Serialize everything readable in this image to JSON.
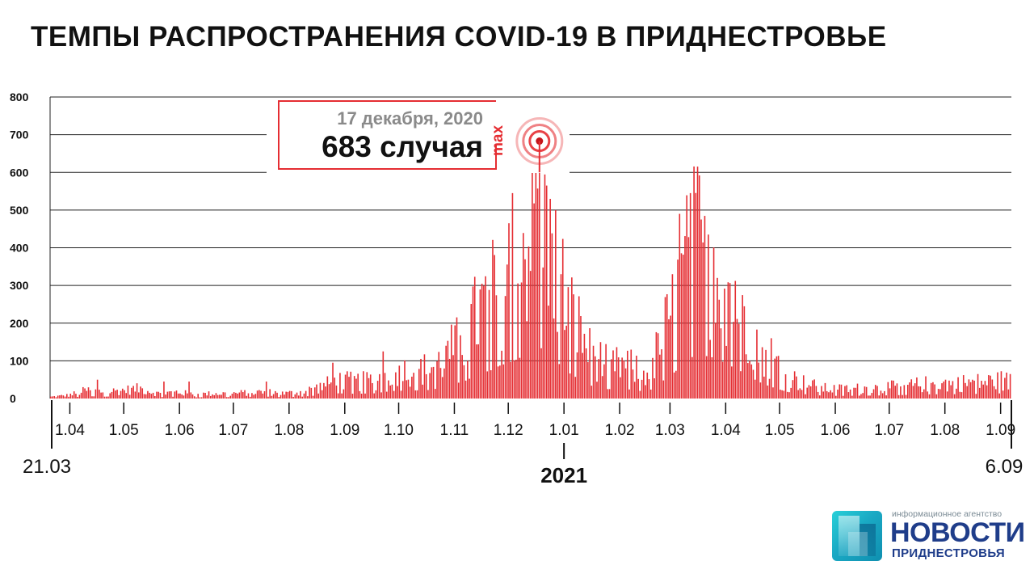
{
  "title": "ТЕМПЫ РАСПРОСТРАНЕНИЯ COVID-19 В ПРИДНЕСТРОВЬЕ",
  "chart_data": {
    "type": "bar",
    "title": "ТЕМПЫ РАСПРОСТРАНЕНИЯ COVID-19 В ПРИДНЕСТРОВЬЕ",
    "xlabel": "",
    "ylabel": "",
    "ylim": [
      0,
      800
    ],
    "yticks": [
      "0",
      "100",
      "200",
      "300",
      "400",
      "500",
      "600",
      "700",
      "800"
    ],
    "grid": true,
    "bar_color": "#e52d32",
    "x_start_label": "21.03",
    "x_end_label": "6.09",
    "year_label": "2021",
    "month_ticks": [
      {
        "label": "1.04",
        "day": 11
      },
      {
        "label": "1.05",
        "day": 41
      },
      {
        "label": "1.06",
        "day": 72
      },
      {
        "label": "1.07",
        "day": 102
      },
      {
        "label": "1.08",
        "day": 133
      },
      {
        "label": "1.09",
        "day": 164
      },
      {
        "label": "1.10",
        "day": 194
      },
      {
        "label": "1.11",
        "day": 225
      },
      {
        "label": "1.12",
        "day": 255
      },
      {
        "label": "1.01",
        "day": 286
      },
      {
        "label": "1.02",
        "day": 317
      },
      {
        "label": "1.03",
        "day": 345
      },
      {
        "label": "1.04",
        "day": 376
      },
      {
        "label": "1.05",
        "day": 406
      },
      {
        "label": "1.06",
        "day": 437
      },
      {
        "label": "1.07",
        "day": 467
      },
      {
        "label": "1.08",
        "day": 498
      },
      {
        "label": "1.09",
        "day": 529
      }
    ],
    "anchors": [
      [
        0,
        5
      ],
      [
        10,
        10
      ],
      [
        20,
        25
      ],
      [
        30,
        20
      ],
      [
        40,
        25
      ],
      [
        50,
        30
      ],
      [
        60,
        15
      ],
      [
        70,
        20
      ],
      [
        80,
        12
      ],
      [
        90,
        15
      ],
      [
        100,
        15
      ],
      [
        110,
        18
      ],
      [
        120,
        20
      ],
      [
        130,
        15
      ],
      [
        140,
        20
      ],
      [
        150,
        35
      ],
      [
        160,
        55
      ],
      [
        170,
        50
      ],
      [
        180,
        55
      ],
      [
        190,
        80
      ],
      [
        200,
        85
      ],
      [
        210,
        90
      ],
      [
        220,
        120
      ],
      [
        225,
        160
      ],
      [
        230,
        180
      ],
      [
        235,
        230
      ],
      [
        240,
        270
      ],
      [
        245,
        300
      ],
      [
        250,
        350
      ],
      [
        255,
        380
      ],
      [
        260,
        420
      ],
      [
        265,
        480
      ],
      [
        270,
        540
      ],
      [
        272,
        560
      ],
      [
        275,
        480
      ],
      [
        280,
        420
      ],
      [
        285,
        330
      ],
      [
        290,
        250
      ],
      [
        295,
        200
      ],
      [
        300,
        140
      ],
      [
        305,
        120
      ],
      [
        310,
        100
      ],
      [
        315,
        100
      ],
      [
        320,
        100
      ],
      [
        325,
        90
      ],
      [
        330,
        75
      ],
      [
        335,
        100
      ],
      [
        340,
        180
      ],
      [
        345,
        240
      ],
      [
        350,
        330
      ],
      [
        355,
        420
      ],
      [
        360,
        470
      ],
      [
        365,
        450
      ],
      [
        370,
        430
      ],
      [
        375,
        380
      ],
      [
        380,
        330
      ],
      [
        385,
        280
      ],
      [
        390,
        220
      ],
      [
        395,
        170
      ],
      [
        400,
        130
      ],
      [
        405,
        100
      ],
      [
        410,
        70
      ],
      [
        415,
        55
      ],
      [
        420,
        45
      ],
      [
        430,
        30
      ],
      [
        440,
        28
      ],
      [
        450,
        30
      ],
      [
        460,
        32
      ],
      [
        470,
        35
      ],
      [
        480,
        40
      ],
      [
        490,
        45
      ],
      [
        500,
        45
      ],
      [
        510,
        48
      ],
      [
        520,
        50
      ],
      [
        530,
        55
      ],
      [
        534,
        50
      ]
    ],
    "spikes": [
      {
        "day": 26,
        "value": 50
      },
      {
        "day": 63,
        "value": 45
      },
      {
        "day": 77,
        "value": 45
      },
      {
        "day": 120,
        "value": 45
      },
      {
        "day": 157,
        "value": 95
      },
      {
        "day": 185,
        "value": 125
      },
      {
        "day": 220,
        "value": 140
      },
      {
        "day": 255,
        "value": 465
      },
      {
        "day": 257,
        "value": 545
      },
      {
        "day": 270,
        "value": 600
      },
      {
        "day": 272,
        "value": 683
      },
      {
        "day": 276,
        "value": 565
      },
      {
        "day": 281,
        "value": 500
      },
      {
        "day": 350,
        "value": 490
      },
      {
        "day": 356,
        "value": 545
      },
      {
        "day": 362,
        "value": 475
      },
      {
        "day": 366,
        "value": 435
      },
      {
        "day": 371,
        "value": 320
      },
      {
        "day": 401,
        "value": 160
      }
    ],
    "peak": {
      "day": 272,
      "value": 683,
      "date": "17 декабря, 2020",
      "label": "683 случая",
      "tag": "max"
    },
    "total_days": 535
  },
  "logo": {
    "tagline": "информационное агентство",
    "name": "НОВОСТИ",
    "subname": "ПРИДНЕСТРОВЬЯ"
  }
}
